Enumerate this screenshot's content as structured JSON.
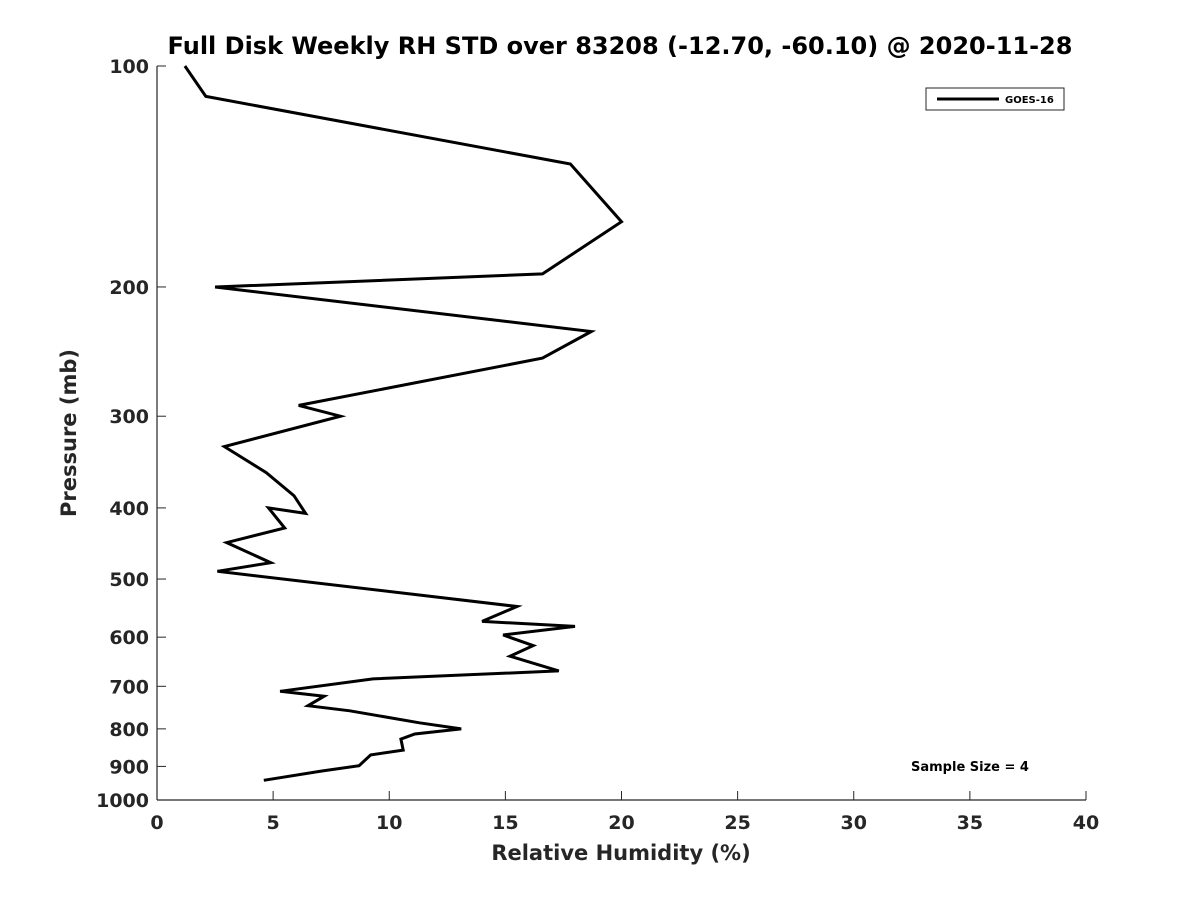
{
  "chart_data": {
    "type": "line",
    "title": "Full Disk Weekly RH STD over 83208 (-12.70, -60.10) @ 2020-11-28",
    "xlabel": "Relative Humidity (%)",
    "ylabel": "Pressure (mb)",
    "xlim": [
      0,
      40
    ],
    "ylim": [
      1000,
      100
    ],
    "y_scale": "log",
    "y_reversed": true,
    "grid": false,
    "legend_position": "top-right",
    "x_ticks": [
      0,
      5,
      10,
      15,
      20,
      25,
      30,
      35,
      40
    ],
    "y_ticks": [
      100,
      200,
      300,
      400,
      500,
      600,
      700,
      800,
      900,
      1000
    ],
    "series": [
      {
        "name": "GOES-16",
        "color": "#000000",
        "x": [
          1.2,
          2.1,
          17.8,
          20.0,
          16.6,
          2.5,
          18.7,
          16.6,
          6.1,
          7.9,
          2.9,
          4.7,
          5.9,
          6.4,
          4.8,
          5.5,
          3.0,
          4.9,
          2.6,
          15.5,
          14.0,
          18.0,
          14.9,
          16.2,
          15.2,
          17.3,
          9.3,
          5.3,
          7.2,
          6.5,
          8.3,
          11.3,
          13.1,
          11.1,
          10.5,
          10.6,
          9.2,
          8.7,
          7.1,
          4.6
        ],
        "y": [
          100,
          110,
          136,
          163,
          192,
          200,
          230,
          250,
          290,
          300,
          330,
          358,
          385,
          407,
          400,
          426,
          446,
          475,
          488,
          545,
          571,
          580,
          596,
          616,
          637,
          667,
          684,
          711,
          722,
          744,
          756,
          785,
          800,
          813,
          826,
          855,
          868,
          898,
          913,
          940
        ]
      }
    ],
    "annotations": [
      "Sample Size = 4"
    ]
  }
}
